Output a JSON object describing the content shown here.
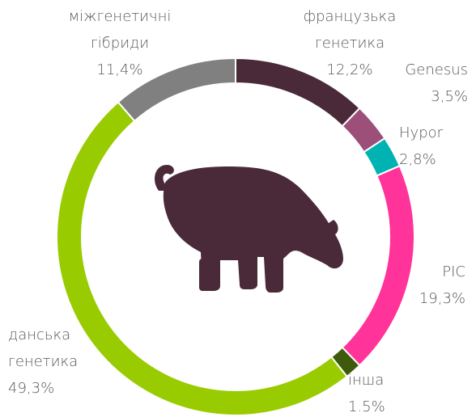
{
  "chart_data": {
    "type": "donut",
    "categories": [
      "французька генетика",
      "Genesus",
      "Hypor",
      "PIC",
      "інша",
      "данська генетика",
      "міжгенетичні гібриди"
    ],
    "values": [
      12.2,
      3.5,
      2.8,
      19.3,
      1.5,
      49.3,
      11.4
    ],
    "value_labels": [
      "12,2%",
      "3,5%",
      "2,8%",
      "19,3%",
      "1.5%",
      "49,3%",
      "11,4%"
    ],
    "colors": [
      "#4a2939",
      "#9c4f79",
      "#00b3b3",
      "#ff3399",
      "#3e5b0b",
      "#99cc00",
      "#808080"
    ]
  }
}
